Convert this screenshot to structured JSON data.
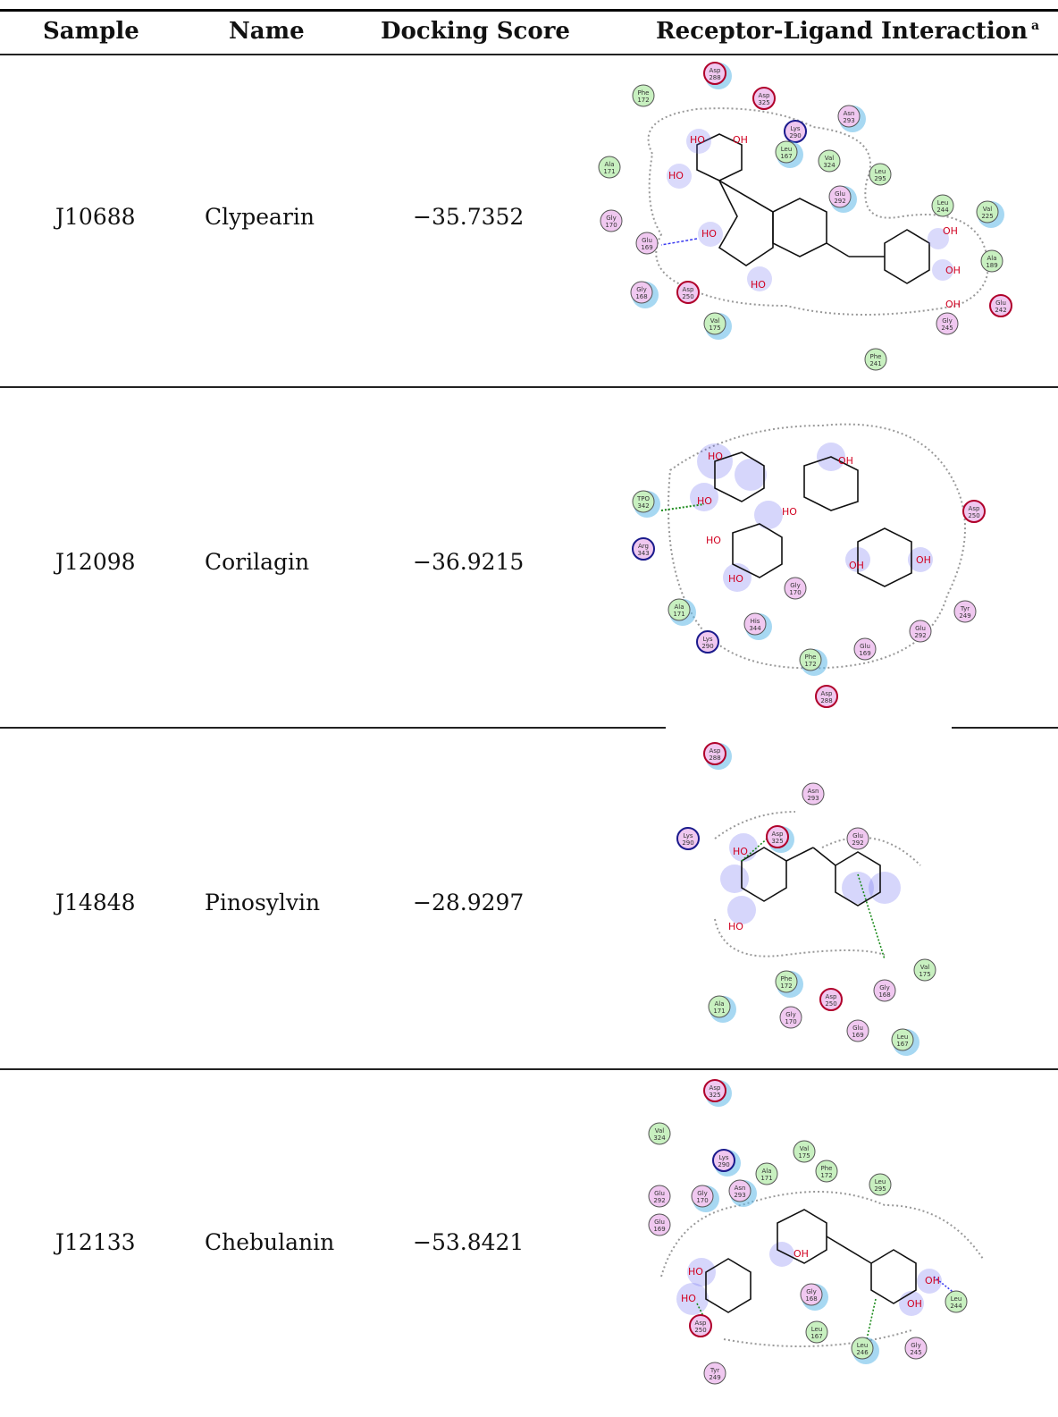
{
  "table": {
    "headers": {
      "sample": "Sample",
      "name": "Name",
      "score": "Docking Score",
      "interaction": "Receptor-Ligand Interaction",
      "interaction_note": "a"
    },
    "rows": [
      {
        "sample": "J10688",
        "name": "Clypearin",
        "score": "−35.7352",
        "residues": [
          {
            "name": "Asp",
            "num": "288",
            "type": "charged"
          },
          {
            "name": "Phe",
            "num": "172",
            "type": "hydrophobic"
          },
          {
            "name": "Asp",
            "num": "325",
            "type": "charged"
          },
          {
            "name": "Asn",
            "num": "293",
            "type": "polar"
          },
          {
            "name": "Lys",
            "num": "290",
            "type": "positive"
          },
          {
            "name": "Ala",
            "num": "171",
            "type": "hydrophobic"
          },
          {
            "name": "Leu",
            "num": "167",
            "type": "hydrophobic"
          },
          {
            "name": "Val",
            "num": "324",
            "type": "hydrophobic"
          },
          {
            "name": "Leu",
            "num": "295",
            "type": "hydrophobic"
          },
          {
            "name": "Glu",
            "num": "292",
            "type": "polar"
          },
          {
            "name": "Gly",
            "num": "170",
            "type": "polar"
          },
          {
            "name": "Leu",
            "num": "244",
            "type": "hydrophobic"
          },
          {
            "name": "Val",
            "num": "225",
            "type": "hydrophobic"
          },
          {
            "name": "Glu",
            "num": "169",
            "type": "polar"
          },
          {
            "name": "Ala",
            "num": "189",
            "type": "hydrophobic"
          },
          {
            "name": "Gly",
            "num": "168",
            "type": "polar"
          },
          {
            "name": "Asp",
            "num": "250",
            "type": "charged"
          },
          {
            "name": "Glu",
            "num": "242",
            "type": "charged"
          },
          {
            "name": "Val",
            "num": "175",
            "type": "hydrophobic"
          },
          {
            "name": "Gly",
            "num": "245",
            "type": "polar"
          },
          {
            "name": "Phe",
            "num": "241",
            "type": "hydrophobic"
          }
        ]
      },
      {
        "sample": "J12098",
        "name": "Corilagin",
        "score": "−36.9215",
        "residues": [
          {
            "name": "TPO",
            "num": "342",
            "type": "hydrophobic"
          },
          {
            "name": "Asp",
            "num": "250",
            "type": "charged"
          },
          {
            "name": "Arg",
            "num": "343",
            "type": "positive"
          },
          {
            "name": "Ala",
            "num": "171",
            "type": "hydrophobic"
          },
          {
            "name": "Tyr",
            "num": "249",
            "type": "polar"
          },
          {
            "name": "Gly",
            "num": "170",
            "type": "polar"
          },
          {
            "name": "His",
            "num": "344",
            "type": "polar"
          },
          {
            "name": "Lys",
            "num": "290",
            "type": "positive"
          },
          {
            "name": "Glu",
            "num": "292",
            "type": "polar"
          },
          {
            "name": "Phe",
            "num": "172",
            "type": "hydrophobic"
          },
          {
            "name": "Glu",
            "num": "169",
            "type": "polar"
          },
          {
            "name": "Asp",
            "num": "288",
            "type": "charged"
          }
        ]
      },
      {
        "sample": "J14848",
        "name": "Pinosylvin",
        "score": "−28.9297",
        "residues": [
          {
            "name": "Asp",
            "num": "288",
            "type": "charged"
          },
          {
            "name": "Asn",
            "num": "293",
            "type": "polar"
          },
          {
            "name": "Lys",
            "num": "290",
            "type": "positive"
          },
          {
            "name": "Asp",
            "num": "325",
            "type": "charged"
          },
          {
            "name": "Glu",
            "num": "292",
            "type": "polar"
          },
          {
            "name": "Val",
            "num": "175",
            "type": "hydrophobic"
          },
          {
            "name": "Phe",
            "num": "172",
            "type": "hydrophobic"
          },
          {
            "name": "Asp",
            "num": "250",
            "type": "charged"
          },
          {
            "name": "Gly",
            "num": "168",
            "type": "polar"
          },
          {
            "name": "Ala",
            "num": "171",
            "type": "hydrophobic"
          },
          {
            "name": "Gly",
            "num": "170",
            "type": "polar"
          },
          {
            "name": "Glu",
            "num": "169",
            "type": "polar"
          },
          {
            "name": "Leu",
            "num": "167",
            "type": "hydrophobic"
          }
        ]
      },
      {
        "sample": "J12133",
        "name": "Chebulanin",
        "score": "−53.8421",
        "residues": [
          {
            "name": "Asp",
            "num": "325",
            "type": "charged"
          },
          {
            "name": "Val",
            "num": "324",
            "type": "hydrophobic"
          },
          {
            "name": "Val",
            "num": "175",
            "type": "hydrophobic"
          },
          {
            "name": "Lys",
            "num": "290",
            "type": "positive"
          },
          {
            "name": "Ala",
            "num": "171",
            "type": "hydrophobic"
          },
          {
            "name": "Phe",
            "num": "172",
            "type": "hydrophobic"
          },
          {
            "name": "Asn",
            "num": "293",
            "type": "polar"
          },
          {
            "name": "Leu",
            "num": "295",
            "type": "hydrophobic"
          },
          {
            "name": "Glu",
            "num": "292",
            "type": "polar"
          },
          {
            "name": "Gly",
            "num": "170",
            "type": "polar"
          },
          {
            "name": "Glu",
            "num": "169",
            "type": "polar"
          },
          {
            "name": "Leu",
            "num": "244",
            "type": "hydrophobic"
          },
          {
            "name": "Gly",
            "num": "168",
            "type": "polar"
          },
          {
            "name": "Asp",
            "num": "250",
            "type": "charged"
          },
          {
            "name": "Leu",
            "num": "167",
            "type": "hydrophobic"
          },
          {
            "name": "Leu",
            "num": "246",
            "type": "hydrophobic"
          },
          {
            "name": "Gly",
            "num": "245",
            "type": "polar"
          },
          {
            "name": "Tyr",
            "num": "249",
            "type": "polar"
          }
        ]
      }
    ]
  },
  "atom_labels": {
    "hydroxyl": "OH",
    "hydroxyl_left": "HO",
    "oxygen": "O",
    "hydrogen": "H"
  },
  "colors": {
    "hydrophobic": "#c8f0c0",
    "polar": "#f0c8f0",
    "charged_border": "#b0002a",
    "positive_border": "#1a1a8c",
    "default_border": "#555555",
    "glow": "#6a6af0",
    "exposure": "#5fb8e8",
    "hbond": "#1a8a1a",
    "hbond_backbone": "#3a3af0"
  }
}
